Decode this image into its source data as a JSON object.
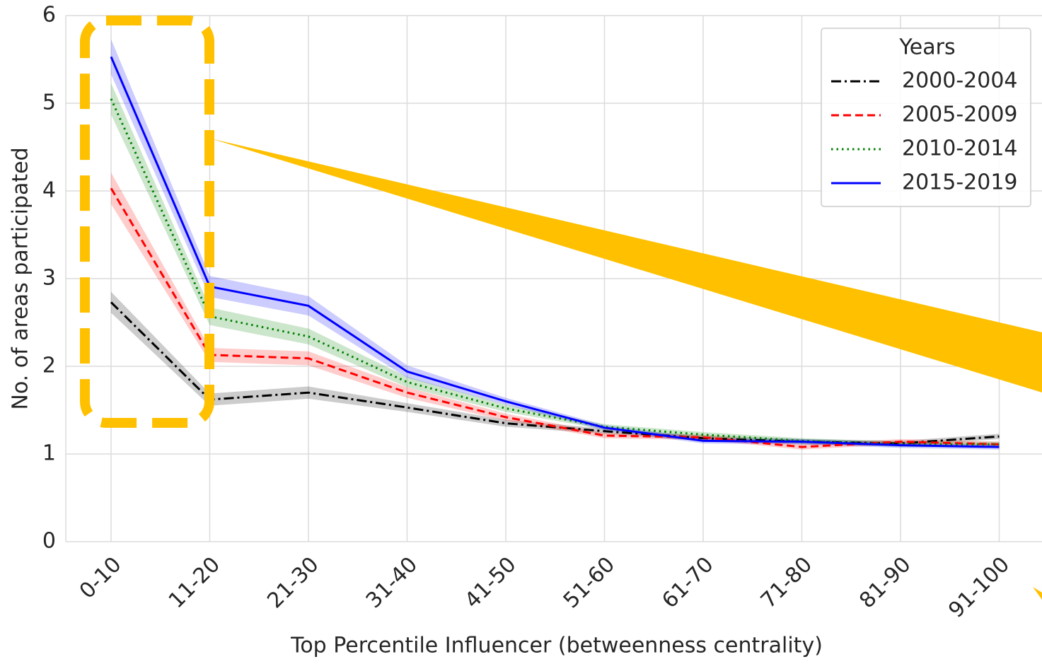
{
  "chart_data": {
    "type": "line",
    "xlabel": "Top Percentile Influencer (betweenness centrality)",
    "ylabel": "No. of areas participated",
    "categories": [
      "0-10",
      "11-20",
      "21-30",
      "31-40",
      "41-50",
      "51-60",
      "61-70",
      "71-80",
      "81-90",
      "91-100"
    ],
    "series": [
      {
        "name": "2000-2004",
        "color": "#000000",
        "dash": "dashdot",
        "values": [
          2.73,
          1.62,
          1.7,
          1.53,
          1.35,
          1.26,
          1.18,
          1.14,
          1.12,
          1.2
        ],
        "errors": [
          0.12,
          0.07,
          0.07,
          0.05,
          0.04,
          0.03,
          0.03,
          0.03,
          0.03,
          0.03
        ]
      },
      {
        "name": "2005-2009",
        "color": "#ff0000",
        "dash": "dashed",
        "values": [
          4.03,
          2.13,
          2.09,
          1.7,
          1.42,
          1.21,
          1.19,
          1.08,
          1.14,
          1.11
        ],
        "errors": [
          0.18,
          0.08,
          0.08,
          0.06,
          0.04,
          0.03,
          0.03,
          0.03,
          0.03,
          0.03
        ]
      },
      {
        "name": "2010-2014",
        "color": "#008000",
        "dash": "dotted",
        "values": [
          5.05,
          2.57,
          2.34,
          1.82,
          1.52,
          1.31,
          1.22,
          1.15,
          1.11,
          1.11
        ],
        "errors": [
          0.18,
          0.1,
          0.09,
          0.06,
          0.04,
          0.03,
          0.03,
          0.03,
          0.03,
          0.03
        ]
      },
      {
        "name": "2015-2019",
        "color": "#0000ff",
        "dash": "solid",
        "values": [
          5.53,
          2.91,
          2.69,
          1.94,
          1.6,
          1.3,
          1.15,
          1.14,
          1.1,
          1.08
        ],
        "errors": [
          0.2,
          0.12,
          0.11,
          0.07,
          0.04,
          0.03,
          0.03,
          0.03,
          0.03,
          0.03
        ]
      }
    ],
    "legend_title": "Years",
    "legend": "upper right",
    "ylim": [
      0,
      6
    ],
    "yticks": [
      0,
      1,
      2,
      3,
      4,
      5,
      6
    ],
    "grid": true
  }
}
